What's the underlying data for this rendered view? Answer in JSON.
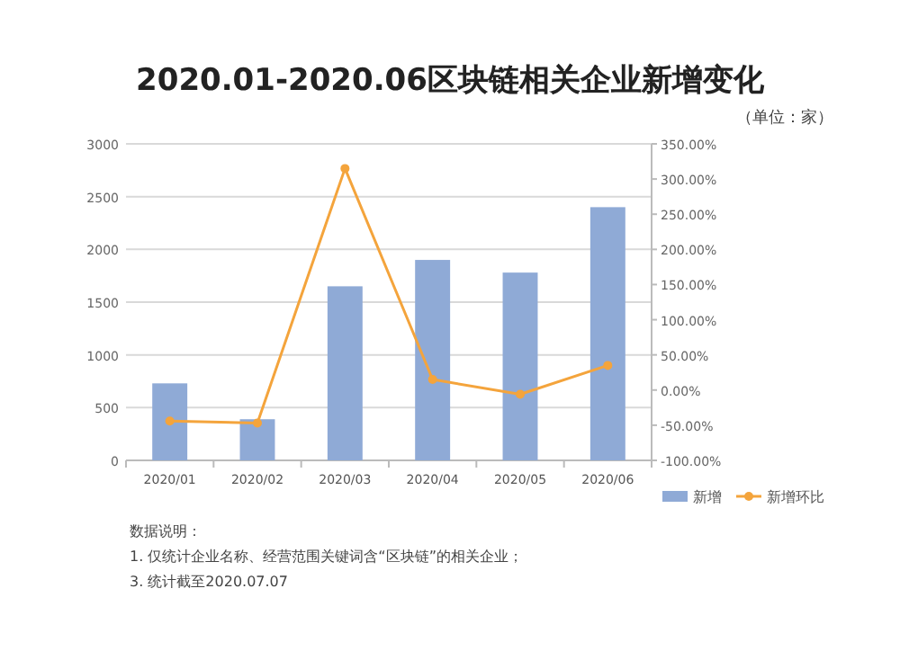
{
  "chart_data": {
    "type": "bar",
    "title": "2020.01-2020.06区块链相关企业新增变化",
    "subtitle": "（单位：家）",
    "categories": [
      "2020/01",
      "2020/02",
      "2020/03",
      "2020/04",
      "2020/05",
      "2020/06"
    ],
    "series": [
      {
        "name": "新增",
        "color": "#8faad6",
        "values": [
          730,
          390,
          1650,
          1900,
          1780,
          2400
        ]
      },
      {
        "name": "新增环比",
        "type": "line",
        "axis": "y2",
        "color": "#f4a43c",
        "marker": "circle",
        "values": [
          -44,
          -47,
          315,
          15,
          -6,
          35
        ]
      }
    ],
    "ylim": [
      0,
      3000
    ],
    "yticks": [
      0,
      500,
      1000,
      1500,
      2000,
      2500,
      3000
    ],
    "y2lim": [
      -100,
      350
    ],
    "y2ticks": [
      {
        "value": -100,
        "label": "-100.00%"
      },
      {
        "value": -50,
        "label": "-50.00%"
      },
      {
        "value": 0,
        "label": "0.00%"
      },
      {
        "value": 50,
        "label": "50.00%"
      },
      {
        "value": 100,
        "label": "100.00%"
      },
      {
        "value": 150,
        "label": "150.00%"
      },
      {
        "value": 200,
        "label": "200.00%"
      },
      {
        "value": 250,
        "label": "250.00%"
      },
      {
        "value": 300,
        "label": "300.00%"
      },
      {
        "value": 350,
        "label": "350.00%"
      }
    ],
    "grid": "y",
    "legend": "bottom right",
    "annotations": [
      "数据说明：",
      "1. 仅统计企业名称、经营范围关键词含“区块链”的相关企业；",
      "3. 统计截至2020.07.07"
    ]
  }
}
